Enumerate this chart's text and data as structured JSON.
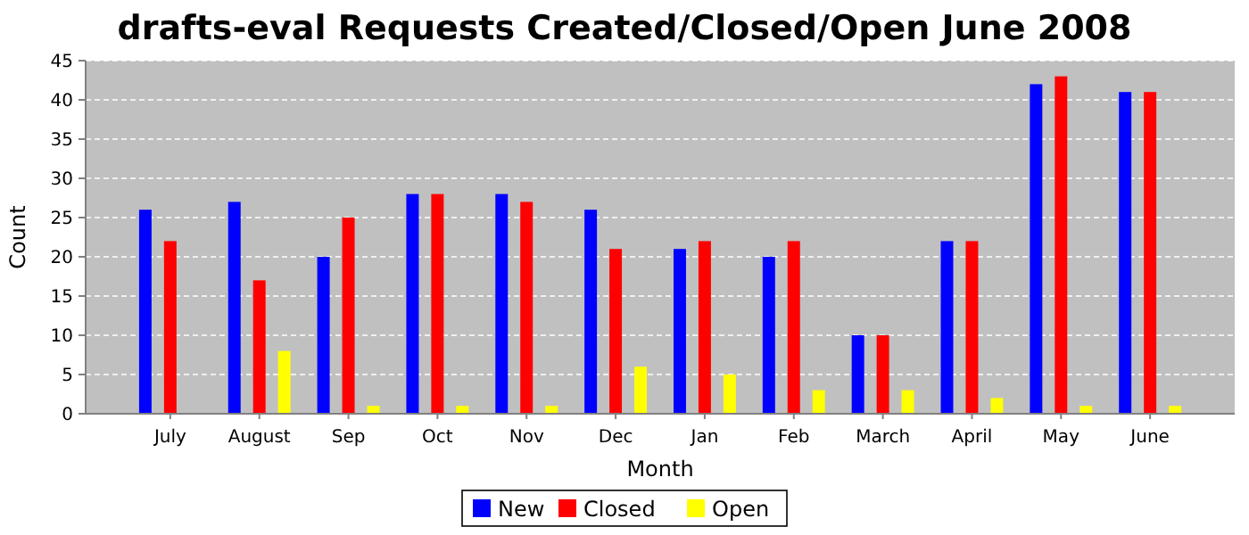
{
  "chart_data": {
    "type": "bar",
    "title": "drafts-eval Requests Created/Closed/Open June 2008",
    "xlabel": "Month",
    "ylabel": "Count",
    "categories": [
      "July",
      "August",
      "Sep",
      "Oct",
      "Nov",
      "Dec",
      "Jan",
      "Feb",
      "March",
      "April",
      "May",
      "June"
    ],
    "series": [
      {
        "name": "New",
        "color": "#0000ff",
        "values": [
          26,
          27,
          20,
          28,
          28,
          26,
          21,
          20,
          10,
          22,
          42,
          41
        ]
      },
      {
        "name": "Closed",
        "color": "#ff0000",
        "values": [
          22,
          17,
          25,
          28,
          27,
          21,
          22,
          22,
          10,
          22,
          43,
          41
        ]
      },
      {
        "name": "Open",
        "color": "#ffff00",
        "values": [
          0,
          8,
          1,
          1,
          1,
          6,
          5,
          3,
          3,
          2,
          1,
          1
        ]
      }
    ],
    "ylim": [
      0,
      45
    ],
    "yticks": [
      0,
      5,
      10,
      15,
      20,
      25,
      30,
      35,
      40,
      45
    ],
    "grid": "y",
    "legend": "bottom"
  }
}
